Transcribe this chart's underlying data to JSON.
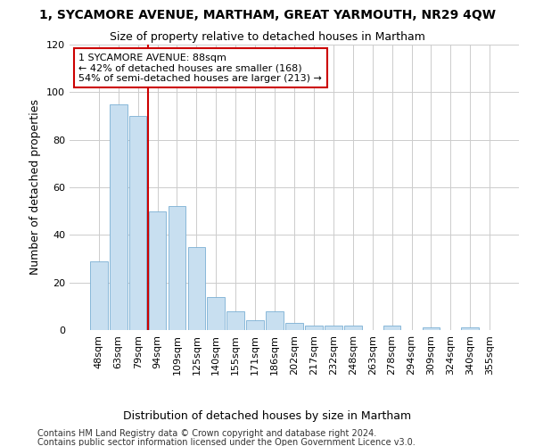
{
  "title": "1, SYCAMORE AVENUE, MARTHAM, GREAT YARMOUTH, NR29 4QW",
  "subtitle": "Size of property relative to detached houses in Martham",
  "xlabel_bottom": "Distribution of detached houses by size in Martham",
  "ylabel": "Number of detached properties",
  "footer1": "Contains HM Land Registry data © Crown copyright and database right 2024.",
  "footer2": "Contains public sector information licensed under the Open Government Licence v3.0.",
  "categories": [
    "48sqm",
    "63sqm",
    "79sqm",
    "94sqm",
    "109sqm",
    "125sqm",
    "140sqm",
    "155sqm",
    "171sqm",
    "186sqm",
    "202sqm",
    "217sqm",
    "232sqm",
    "248sqm",
    "263sqm",
    "278sqm",
    "294sqm",
    "309sqm",
    "324sqm",
    "340sqm",
    "355sqm"
  ],
  "values": [
    29,
    95,
    90,
    50,
    52,
    35,
    14,
    8,
    4,
    8,
    3,
    2,
    2,
    2,
    0,
    2,
    0,
    1,
    0,
    1,
    0
  ],
  "bar_color": "#c8dff0",
  "bar_edge_color": "#7aafd4",
  "vline_color": "#cc0000",
  "annotation_text": "1 SYCAMORE AVENUE: 88sqm\n← 42% of detached houses are smaller (168)\n54% of semi-detached houses are larger (213) →",
  "annotation_box_facecolor": "#ffffff",
  "annotation_box_edgecolor": "#cc0000",
  "ylim": [
    0,
    120
  ],
  "yticks": [
    0,
    20,
    40,
    60,
    80,
    100,
    120
  ],
  "background_color": "#ffffff",
  "plot_bg_color": "#ffffff",
  "grid_color": "#cccccc",
  "title_fontsize": 10,
  "subtitle_fontsize": 9,
  "ylabel_fontsize": 9,
  "xlabel_fontsize": 9,
  "tick_fontsize": 8,
  "annot_fontsize": 8,
  "footer_fontsize": 7
}
